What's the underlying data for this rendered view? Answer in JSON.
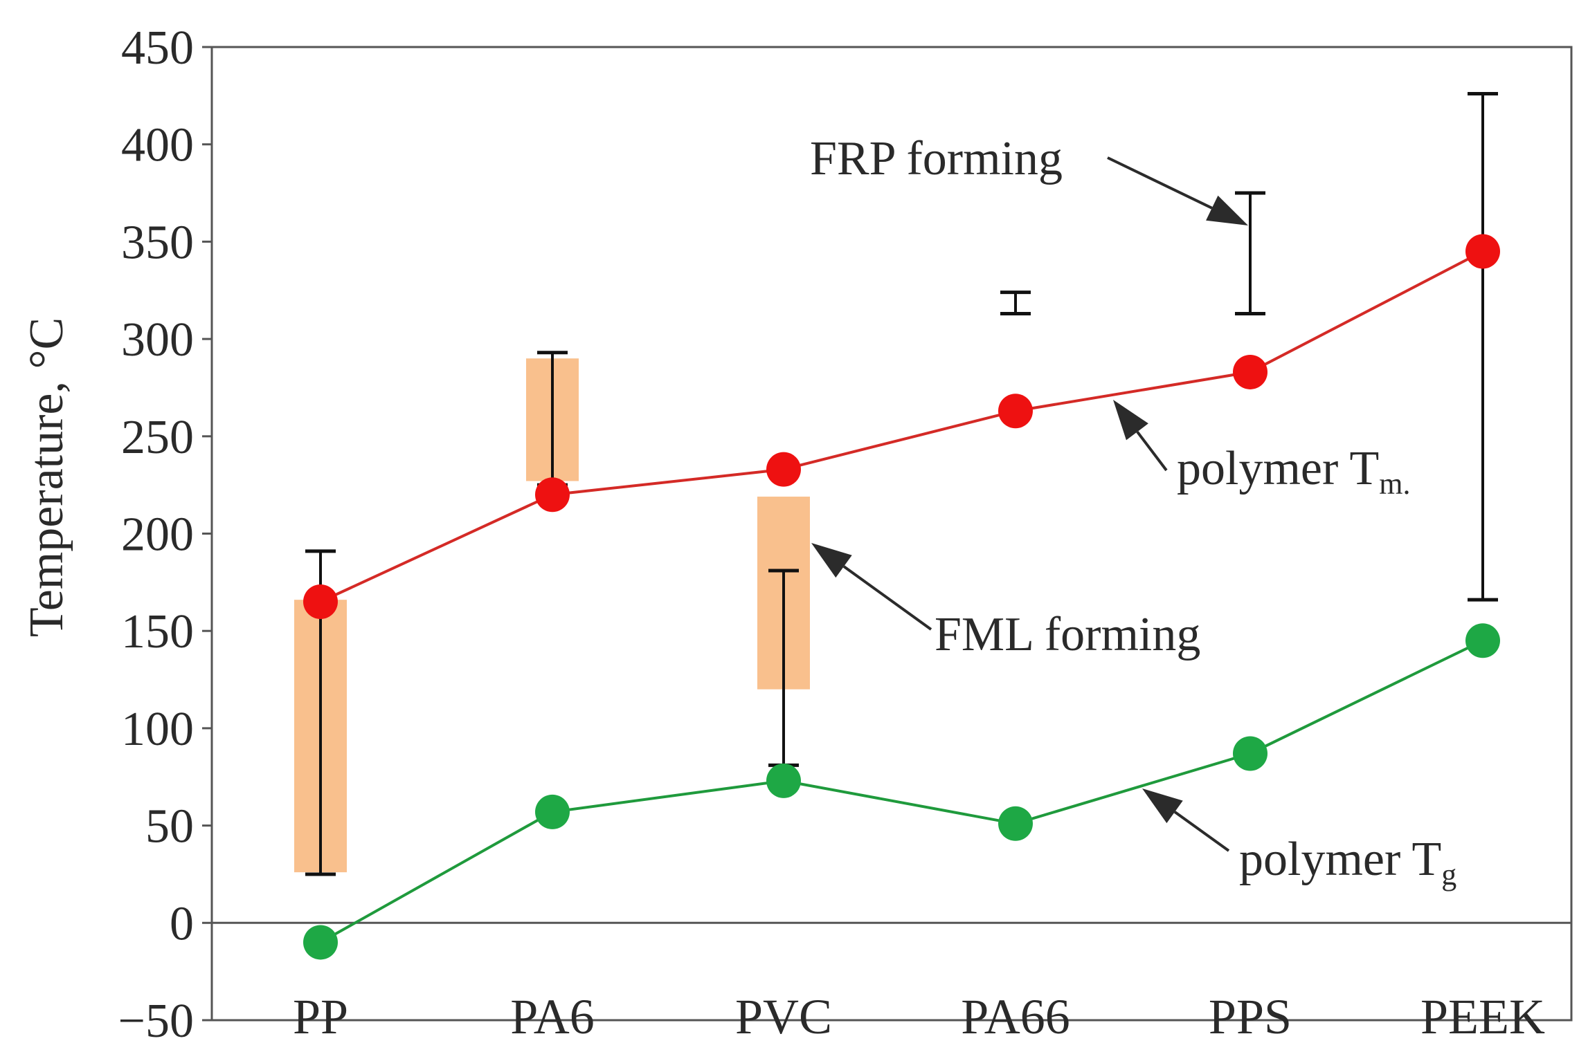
{
  "chart_data": {
    "type": "line",
    "xlabel": "",
    "ylabel": "Temperature, °C",
    "ylim": [
      -50,
      450
    ],
    "yticks": [
      -50,
      0,
      50,
      100,
      150,
      200,
      250,
      300,
      350,
      400,
      450
    ],
    "ytick_labels": [
      "−50",
      "0",
      "50",
      "100",
      "150",
      "200",
      "250",
      "300",
      "350",
      "400",
      "450"
    ],
    "categories": [
      "PP",
      "PA6",
      "PVC",
      "PA66",
      "PPS",
      "PEEK"
    ],
    "grid": false,
    "series": [
      {
        "role": "tm",
        "values": [
          165,
          220,
          233,
          263,
          283,
          345
        ],
        "color": "#d42a26",
        "marker_color": "#ee1111"
      },
      {
        "role": "tg",
        "values": [
          -10,
          57,
          73,
          51,
          87,
          145
        ],
        "color": "#1f9a3c",
        "marker_color": "#1ea845"
      }
    ],
    "frp_forming": [
      {
        "category": "PP",
        "low": 25,
        "high": 191
      },
      {
        "category": "PA6",
        "low": 225,
        "high": 293
      },
      {
        "category": "PVC",
        "low": 81,
        "high": 181
      },
      {
        "category": "PA66",
        "low": 313,
        "high": 324
      },
      {
        "category": "PPS",
        "low": 313,
        "high": 375
      },
      {
        "category": "PEEK",
        "low": 166,
        "high": 426
      }
    ],
    "fml_forming": [
      {
        "category": "PP",
        "low": 26,
        "high": 166
      },
      {
        "category": "PA6",
        "low": 227,
        "high": 290
      },
      {
        "category": "PVC",
        "low": 120,
        "high": 219
      }
    ],
    "annotations": {
      "frp": "FRP forming",
      "fml": "FML forming",
      "tm_prefix": "polymer T",
      "tm_sub": "m.",
      "tg_prefix": "polymer T",
      "tg_sub": "g"
    },
    "colors": {
      "fml_band": "#f9c08d",
      "axis": "#555555",
      "errorbar": "#111111"
    }
  }
}
